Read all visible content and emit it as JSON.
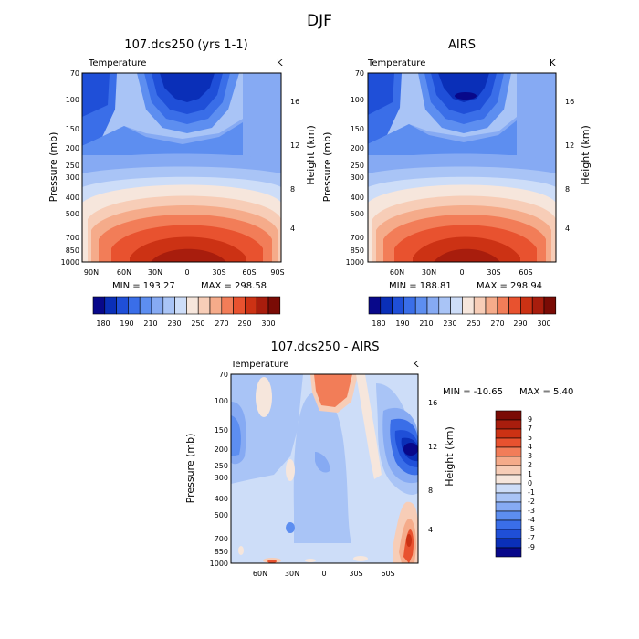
{
  "figure_title": "DJF",
  "chart_data": [
    {
      "type": "heatmap",
      "title": "107.dcs250 (yrs 1-1)",
      "variable": "Temperature",
      "units": "K",
      "xlabel": "",
      "ylabel": "Pressure (mb)",
      "ylabel_right": "Height (km)",
      "xlim": [
        "90N",
        "90S"
      ],
      "ylim": [
        1000,
        70
      ],
      "x_ticks": [
        "90N",
        "60N",
        "30N",
        "0",
        "30S",
        "60S",
        "90S"
      ],
      "y_ticks": [
        "70",
        "100",
        "150",
        "200",
        "250",
        "300",
        "400",
        "500",
        "700",
        "850",
        "1000"
      ],
      "right_ticks": [
        "16",
        "12",
        "8",
        "4"
      ],
      "min_label": "MIN = 193.27",
      "max_label": "MAX = 298.58",
      "min": 193.27,
      "max": 298.58,
      "colorbar_labels": [
        "180",
        "190",
        "210",
        "230",
        "250",
        "270",
        "290",
        "300"
      ],
      "contour_levels": [
        180,
        185,
        190,
        200,
        210,
        220,
        230,
        240,
        250,
        260,
        270,
        280,
        290,
        295,
        300
      ]
    },
    {
      "type": "heatmap",
      "title": "AIRS",
      "variable": "Temperature",
      "units": "K",
      "xlabel": "",
      "ylabel": "Pressure (mb)",
      "ylabel_right": "Height (km)",
      "x_ticks": [
        "60N",
        "30N",
        "0",
        "30S",
        "60S"
      ],
      "y_ticks": [
        "70",
        "100",
        "150",
        "200",
        "250",
        "300",
        "400",
        "500",
        "700",
        "850",
        "1000"
      ],
      "right_ticks": [
        "16",
        "12",
        "8",
        "4"
      ],
      "min_label": "MIN = 188.81",
      "max_label": "MAX = 298.94",
      "min": 188.81,
      "max": 298.94,
      "colorbar_labels": [
        "180",
        "190",
        "210",
        "230",
        "250",
        "270",
        "290",
        "300"
      ],
      "contour_levels": [
        180,
        185,
        190,
        200,
        210,
        220,
        230,
        240,
        250,
        260,
        270,
        280,
        290,
        295,
        300
      ]
    },
    {
      "type": "heatmap",
      "title": "107.dcs250 - AIRS",
      "variable": "Temperature",
      "units": "K",
      "xlabel": "",
      "ylabel": "Pressure (mb)",
      "ylabel_right": "Height (km)",
      "x_ticks": [
        "60N",
        "30N",
        "0",
        "30S",
        "60S"
      ],
      "y_ticks": [
        "70",
        "100",
        "150",
        "200",
        "250",
        "300",
        "400",
        "500",
        "700",
        "850",
        "1000"
      ],
      "right_ticks": [
        "16",
        "12",
        "8",
        "4"
      ],
      "min_label": "MIN = -10.65",
      "max_label": "MAX =   5.40",
      "min": -10.65,
      "max": 5.4,
      "colorbar_labels": [
        "9",
        "7",
        "5",
        "4",
        "3",
        "2",
        "1",
        "0",
        "-1",
        "-2",
        "-3",
        "-4",
        "-5",
        "-7",
        "-9"
      ],
      "contour_levels": [
        -9,
        -7,
        -5,
        -4,
        -3,
        -2,
        -1,
        0,
        1,
        2,
        3,
        4,
        5,
        7,
        9
      ]
    }
  ],
  "colors": {
    "temperature_scale": [
      "#08088a",
      "#0a2fb8",
      "#1f4fd8",
      "#3a6ee8",
      "#5d8ef0",
      "#86aaf3",
      "#a9c4f6",
      "#cdddf8",
      "#f6e6dc",
      "#f7cdb7",
      "#f5ab8a",
      "#f27d58",
      "#e8522f",
      "#cc3214",
      "#a81d0d",
      "#7a0b05"
    ],
    "difference_scale": [
      "#7a0b05",
      "#a81d0d",
      "#cc3214",
      "#e8522f",
      "#f27d58",
      "#f5ab8a",
      "#f7cdb7",
      "#f6e6dc",
      "#cdddf8",
      "#a9c4f6",
      "#86aaf3",
      "#5d8ef0",
      "#3a6ee8",
      "#1f4fd8",
      "#0a2fb8",
      "#08088a"
    ]
  }
}
